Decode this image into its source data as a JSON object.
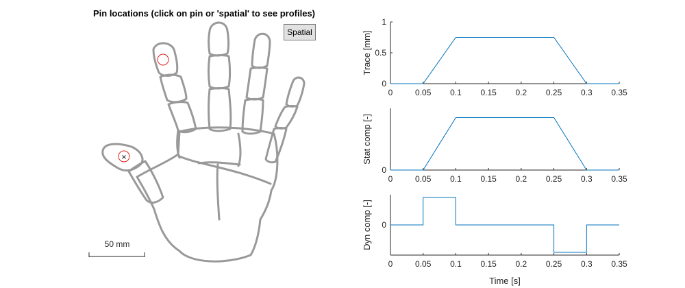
{
  "hand_panel": {
    "title": "Pin locations (click on pin or 'spatial' to see profiles)",
    "spatial_button": "Spatial",
    "scale_bar_label": "50 mm",
    "pin_marker_symbol": "×",
    "pin_color": "#e0201b",
    "outline_color": "#999999"
  },
  "colors": {
    "line": "#0072bd",
    "axis": "#262626"
  },
  "chart_data": [
    {
      "type": "line",
      "ylabel": "Trace [mm]",
      "xlabel": "",
      "xlim": [
        0,
        0.35
      ],
      "ylim": [
        0,
        1
      ],
      "xticks": [
        "0",
        "0.05",
        "0.1",
        "0.15",
        "0.2",
        "0.25",
        "0.3",
        "0.35"
      ],
      "yticks": [
        {
          "v": 0,
          "label": "0"
        },
        {
          "v": 0.5,
          "label": "0.5"
        },
        {
          "v": 1,
          "label": "1"
        }
      ],
      "x": [
        0,
        0.05,
        0.1,
        0.25,
        0.3,
        0.35
      ],
      "y": [
        0,
        0,
        0.75,
        0.75,
        0,
        0
      ]
    },
    {
      "type": "line",
      "ylabel": "Stat comp [-]",
      "xlabel": "",
      "xlim": [
        0,
        0.35
      ],
      "ylim": [
        0,
        1
      ],
      "xticks": [
        "0",
        "0.05",
        "0.1",
        "0.15",
        "0.2",
        "0.25",
        "0.3",
        "0.35"
      ],
      "yticks": [
        {
          "v": 0,
          "label": "0"
        }
      ],
      "x": [
        0,
        0.05,
        0.1,
        0.25,
        0.3,
        0.35
      ],
      "y": [
        0,
        0,
        0.85,
        0.85,
        0,
        0
      ]
    },
    {
      "type": "line",
      "ylabel": "Dyn comp [-]",
      "xlabel": "Time [s]",
      "xlim": [
        0,
        0.35
      ],
      "ylim": [
        -1.1,
        1.1
      ],
      "xticks": [
        "0",
        "0.05",
        "0.1",
        "0.15",
        "0.2",
        "0.25",
        "0.3",
        "0.35"
      ],
      "yticks": [
        {
          "v": 0,
          "label": "0"
        }
      ],
      "x": [
        0,
        0.05,
        0.05,
        0.1,
        0.1,
        0.25,
        0.25,
        0.3,
        0.3,
        0.35
      ],
      "y": [
        0,
        0,
        1,
        1,
        0,
        0,
        -1,
        -1,
        0,
        0
      ]
    }
  ]
}
